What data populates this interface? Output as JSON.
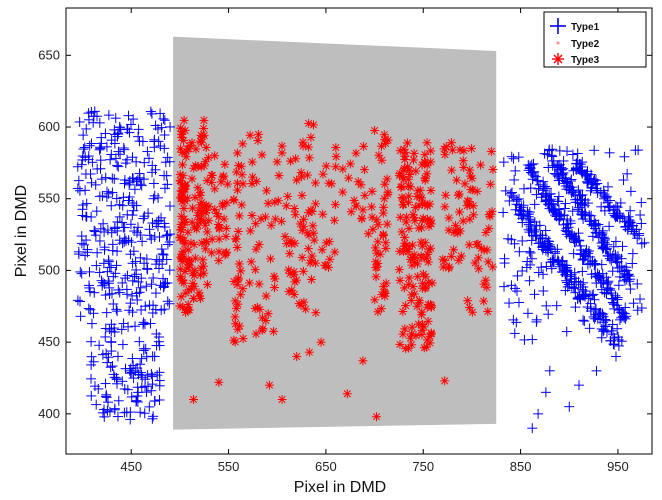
{
  "chart_data": {
    "type": "scatter",
    "title": "",
    "xlabel": "Pixel in DMD",
    "ylabel": "Pixel in DMD",
    "xlim": [
      383,
      985
    ],
    "ylim": [
      372,
      683
    ],
    "xticks": [
      450,
      550,
      650,
      750,
      850,
      950
    ],
    "yticks": [
      400,
      450,
      500,
      550,
      600,
      650
    ],
    "grid": false,
    "legend_position": "top-right",
    "region": {
      "shape": "quadrilateral",
      "fill": "#bebebe",
      "vertices": [
        [
          493,
          663
        ],
        [
          825,
          653
        ],
        [
          825,
          393
        ],
        [
          493,
          389
        ]
      ]
    },
    "series": [
      {
        "name": "Type1",
        "marker": "plus",
        "color": "#0000ff",
        "clusters": [
          {
            "x": [
              395,
              490
            ],
            "y": [
              470,
              612
            ],
            "n": 320
          },
          {
            "x": [
              408,
              480
            ],
            "y": [
              396,
              465
            ],
            "n": 120
          },
          {
            "x": [
              830,
              975
            ],
            "y": [
              450,
              585
            ],
            "n": 160
          }
        ],
        "bands": [
          {
            "from": [
              835,
              555
            ],
            "to": [
              950,
              450
            ],
            "spread": 6,
            "n": 170
          },
          {
            "from": [
              860,
              570
            ],
            "to": [
              955,
              470
            ],
            "spread": 6,
            "n": 150
          },
          {
            "from": [
              880,
              580
            ],
            "to": [
              965,
              490
            ],
            "spread": 6,
            "n": 130
          },
          {
            "from": [
              905,
              575
            ],
            "to": [
              975,
              520
            ],
            "spread": 5,
            "n": 90
          }
        ],
        "isolated": [
          [
            398,
            468
          ],
          [
            862,
            390
          ],
          [
            868,
            400
          ],
          [
            876,
            415
          ],
          [
            880,
            430
          ],
          [
            900,
            405
          ],
          [
            910,
            420
          ],
          [
            928,
            430
          ],
          [
            948,
            440
          ]
        ]
      },
      {
        "name": "Type2",
        "marker": "dot",
        "color": "#ff9999",
        "points": []
      },
      {
        "name": "Type3",
        "marker": "asterisk",
        "color": "#ff0000",
        "clusters": [
          {
            "x": [
              500,
              510
            ],
            "y": [
              470,
              605
            ],
            "n": 80
          },
          {
            "x": [
              510,
              530
            ],
            "y": [
              480,
              605
            ],
            "n": 70
          },
          {
            "x": [
              532,
              550
            ],
            "y": [
              505,
              590
            ],
            "n": 30
          },
          {
            "x": [
              555,
              565
            ],
            "y": [
              450,
              600
            ],
            "n": 35
          },
          {
            "x": [
              570,
              605
            ],
            "y": [
              455,
              595
            ],
            "n": 45
          },
          {
            "x": [
              608,
              640
            ],
            "y": [
              470,
              605
            ],
            "n": 60
          },
          {
            "x": [
              645,
              660
            ],
            "y": [
              500,
              575
            ],
            "n": 15
          },
          {
            "x": [
              660,
              690
            ],
            "y": [
              530,
              590
            ],
            "n": 20
          },
          {
            "x": [
              693,
              715
            ],
            "y": [
              510,
              600
            ],
            "n": 25
          },
          {
            "x": [
              700,
              712
            ],
            "y": [
              470,
              525
            ],
            "n": 20
          },
          {
            "x": [
              725,
              760
            ],
            "y": [
              445,
              590
            ],
            "n": 150
          },
          {
            "x": [
              770,
              800
            ],
            "y": [
              500,
              590
            ],
            "n": 40
          },
          {
            "x": [
              795,
              822
            ],
            "y": [
              470,
              575
            ],
            "n": 35
          }
        ],
        "isolated": [
          [
            514,
            410
          ],
          [
            540,
            422
          ],
          [
            592,
            420
          ],
          [
            605,
            410
          ],
          [
            620,
            440
          ],
          [
            633,
            443
          ],
          [
            645,
            450
          ],
          [
            672,
            414
          ],
          [
            688,
            437
          ],
          [
            772,
            423
          ],
          [
            702,
            398
          ],
          [
            820,
            583
          ]
        ]
      }
    ]
  }
}
